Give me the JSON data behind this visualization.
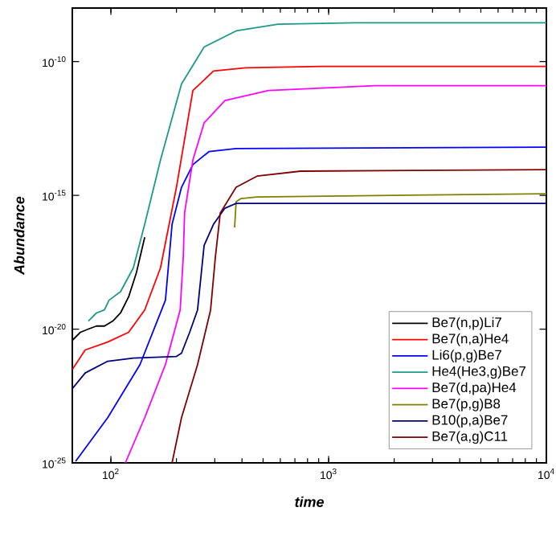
{
  "chart_data": {
    "type": "line",
    "xlabel": "time",
    "ylabel": "Abundance",
    "log": "xy",
    "legend": "bottom right",
    "grid": false,
    "marker": "none",
    "line_style": "solid",
    "xlim": [
      66.5,
      10000
    ],
    "ylim": [
      1e-25,
      1e-08
    ],
    "xticks": [
      {
        "value": 100,
        "label": "10$^{2}$"
      },
      {
        "value": 1000,
        "label": "10$^{3}$"
      },
      {
        "value": 10000,
        "label": "10$^{4}$"
      }
    ],
    "yticks": [
      {
        "value": 1e-25,
        "label": "10$^{-25}$"
      },
      {
        "value": 1e-20,
        "label": "10$^{-20}$"
      },
      {
        "value": 1e-15,
        "label": "10$^{-15}$"
      },
      {
        "value": 1e-10,
        "label": "10$^{-10}$"
      }
    ],
    "series": [
      {
        "name": "Be7(n,p)Li7",
        "color": "#000000",
        "x": [
          66.5,
          72.4,
          78.8,
          85.8,
          93.4,
          102,
          110.7,
          120.6,
          131,
          143
        ],
        "values": [
          3.8e-21,
          7.6e-21,
          1e-20,
          1.3e-20,
          1.3e-20,
          2e-20,
          4e-20,
          1.6e-19,
          1.3e-18,
          2.7e-17
        ]
      },
      {
        "name": "Be7(n,a)He4",
        "color": "#ff0000",
        "x": [
          66.5,
          76.2,
          96.7,
          120.6,
          143,
          169,
          200,
          238,
          296,
          416,
          927,
          10000
        ],
        "values": [
          3.1e-22,
          1.66e-21,
          3.3e-21,
          7.6e-21,
          5.2e-20,
          1.95e-18,
          2e-15,
          8.3e-12,
          4.4e-11,
          5.8e-11,
          6.6e-11,
          6.6e-11
        ]
      },
      {
        "name": "Li6(p,g)Be7",
        "color": "#0000ff",
        "x": [
          68.9,
          96.7,
          136,
          178,
          191,
          211,
          238,
          282,
          376,
          10000
        ],
        "values": [
          1.15e-25,
          4.9e-24,
          4.7e-22,
          1.2e-19,
          8.3e-17,
          2e-15,
          1.4e-14,
          4.3e-14,
          5.6e-14,
          6.3e-14
        ]
      },
      {
        "name": "He4(He3,g)Be7",
        "color": "#1a9a8a",
        "x": [
          78.8,
          85.8,
          93.4,
          98,
          110.7,
          126.8,
          143,
          169,
          211,
          268,
          376,
          585,
          1300,
          10000
        ],
        "values": [
          2e-20,
          4e-20,
          5.2e-20,
          1.2e-19,
          2.5e-19,
          1.95e-18,
          8.3e-17,
          2.1e-14,
          1.45e-11,
          3.5e-10,
          1.4e-09,
          2.5e-09,
          2.8e-09,
          2.8e-09
        ]
      },
      {
        "name": "Be7(d,pa)He4",
        "color": "#ff00ff",
        "x": [
          116.5,
          143,
          178,
          208,
          215,
          218,
          238,
          268,
          334,
          529,
          1630,
          10000
        ],
        "values": [
          1e-25,
          4.9e-24,
          4.7e-22,
          5.2e-20,
          5.1e-18,
          2.2e-16,
          2.1e-14,
          5.1e-13,
          3.5e-12,
          8.3e-12,
          1.26e-11,
          1.26e-11
        ]
      },
      {
        "name": "Be7(p,g)B8",
        "color": "#808000",
        "x": [
          370,
          376,
          396,
          469,
          10000
        ],
        "values": [
          6.3e-17,
          5.8e-16,
          7.6e-16,
          8.7e-16,
          1.15e-15
        ]
      },
      {
        "name": "B10(p,a)Be7",
        "color": "#000080",
        "x": [
          66.5,
          76.2,
          96.7,
          126.8,
          200,
          211,
          230,
          250,
          268,
          296,
          334,
          376,
          10000
        ],
        "values": [
          5.9e-23,
          2.3e-22,
          6.3e-22,
          8.3e-22,
          9.5e-22,
          1.26e-21,
          7.6e-21,
          5.2e-20,
          1.35e-17,
          8.3e-17,
          3.3e-16,
          5e-16,
          5e-16
        ]
      },
      {
        "name": "Be7(a,g)C11",
        "color": "#800000",
        "x": [
          191,
          211,
          250,
          287,
          302,
          318,
          376,
          469,
          743,
          10000
        ],
        "values": [
          1e-25,
          4.9e-24,
          4.7e-22,
          5.2e-20,
          5.1e-18,
          2.2e-16,
          2e-15,
          5.2e-15,
          8e-15,
          9.1e-15
        ]
      }
    ]
  }
}
